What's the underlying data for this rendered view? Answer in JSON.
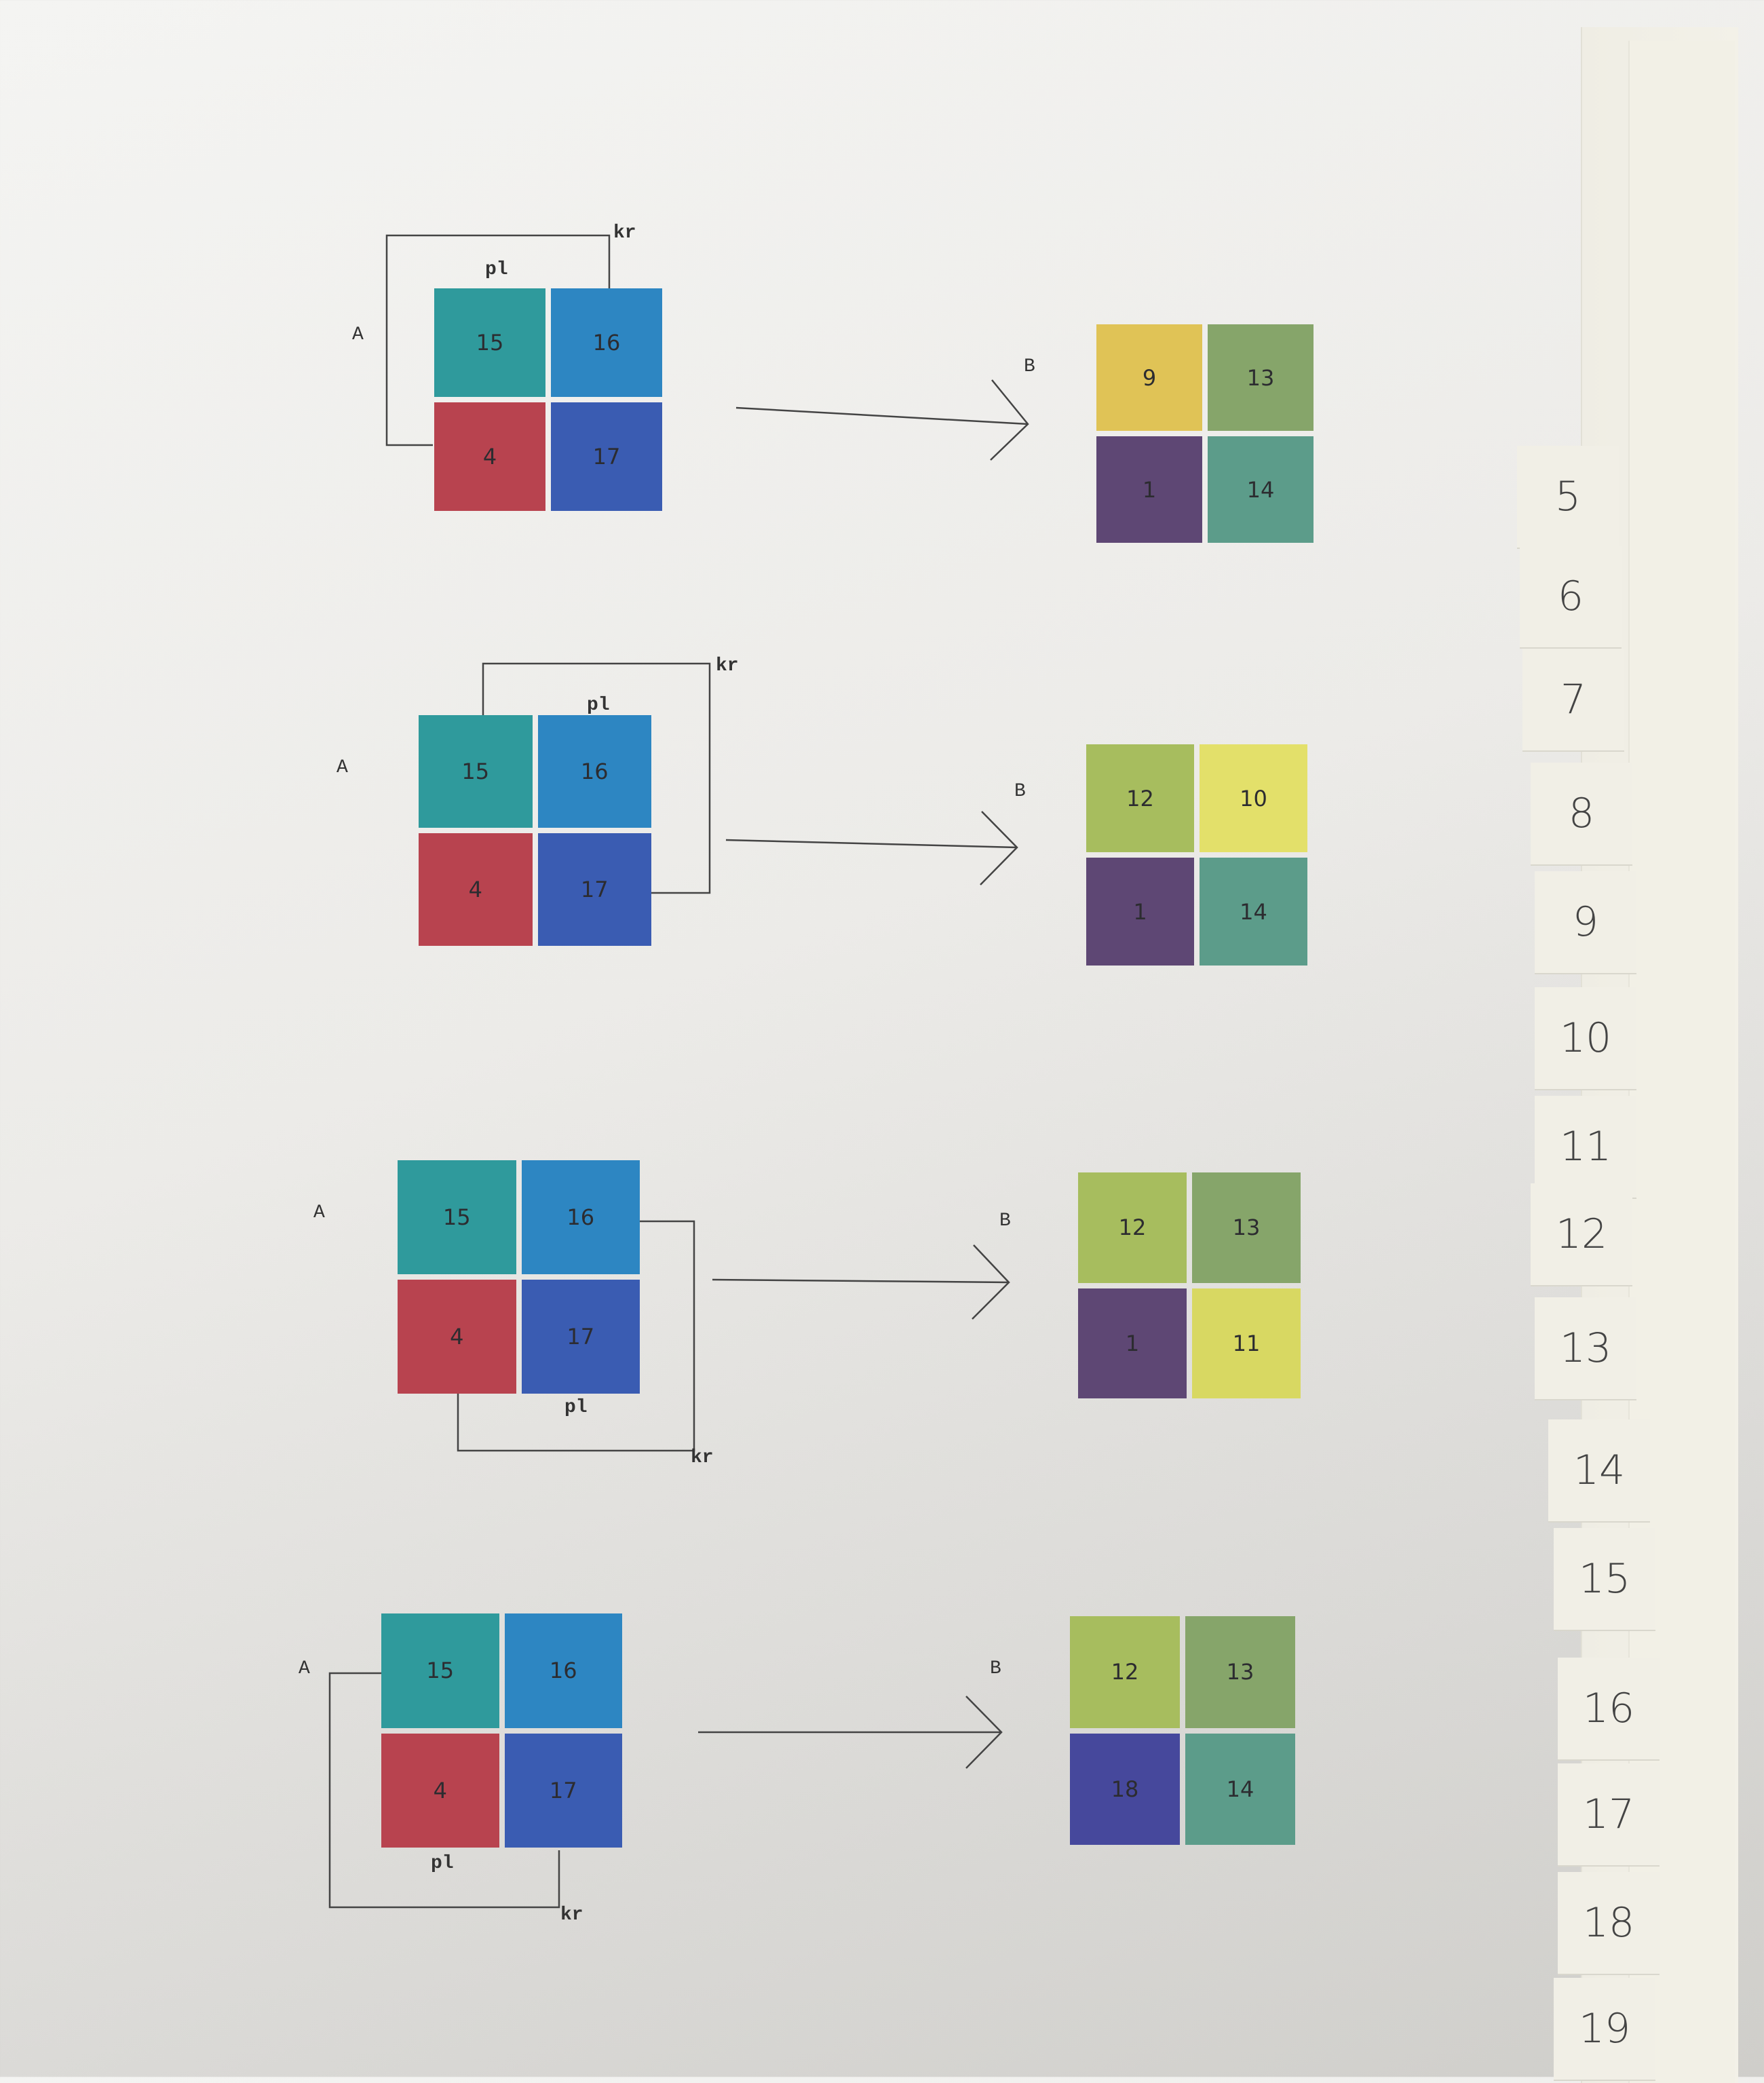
{
  "tabs": [
    "5",
    "6",
    "7",
    "8",
    "9",
    "10",
    "11",
    "12",
    "13",
    "14",
    "15",
    "16",
    "17",
    "18",
    "19"
  ],
  "labels": {
    "a": "A",
    "b": "B",
    "pl": "pl",
    "kr": "kr"
  },
  "rows": [
    {
      "source": [
        {
          "n": "15",
          "color": "#2f9a9c"
        },
        {
          "n": "16",
          "color": "#2d86c2"
        },
        {
          "n": "4",
          "color": "#b8434f"
        },
        {
          "n": "17",
          "color": "#3a5cb2"
        }
      ],
      "target": [
        {
          "n": "9",
          "color": "#e0c356"
        },
        {
          "n": "13",
          "color": "#86a56a"
        },
        {
          "n": "1",
          "color": "#5e4774"
        },
        {
          "n": "14",
          "color": "#5c9c8a"
        }
      ]
    },
    {
      "source": [
        {
          "n": "15",
          "color": "#2f9a9c"
        },
        {
          "n": "16",
          "color": "#2d86c2"
        },
        {
          "n": "4",
          "color": "#b8434f"
        },
        {
          "n": "17",
          "color": "#3a5cb2"
        }
      ],
      "target": [
        {
          "n": "12",
          "color": "#a7bd5e"
        },
        {
          "n": "10",
          "color": "#e3e06a"
        },
        {
          "n": "1",
          "color": "#5e4774"
        },
        {
          "n": "14",
          "color": "#5c9c8a"
        }
      ]
    },
    {
      "source": [
        {
          "n": "15",
          "color": "#2f9a9c"
        },
        {
          "n": "16",
          "color": "#2d86c2"
        },
        {
          "n": "4",
          "color": "#b8434f"
        },
        {
          "n": "17",
          "color": "#3a5cb2"
        }
      ],
      "target": [
        {
          "n": "12",
          "color": "#a7bd5e"
        },
        {
          "n": "13",
          "color": "#86a56a"
        },
        {
          "n": "1",
          "color": "#5e4774"
        },
        {
          "n": "11",
          "color": "#d8d862"
        }
      ]
    },
    {
      "source": [
        {
          "n": "15",
          "color": "#2f9a9c"
        },
        {
          "n": "16",
          "color": "#2d86c2"
        },
        {
          "n": "4",
          "color": "#b8434f"
        },
        {
          "n": "17",
          "color": "#3a5cb2"
        }
      ],
      "target": [
        {
          "n": "12",
          "color": "#a7bd5e"
        },
        {
          "n": "13",
          "color": "#86a56a"
        },
        {
          "n": "18",
          "color": "#46489c"
        },
        {
          "n": "14",
          "color": "#5c9c8a"
        }
      ]
    }
  ]
}
